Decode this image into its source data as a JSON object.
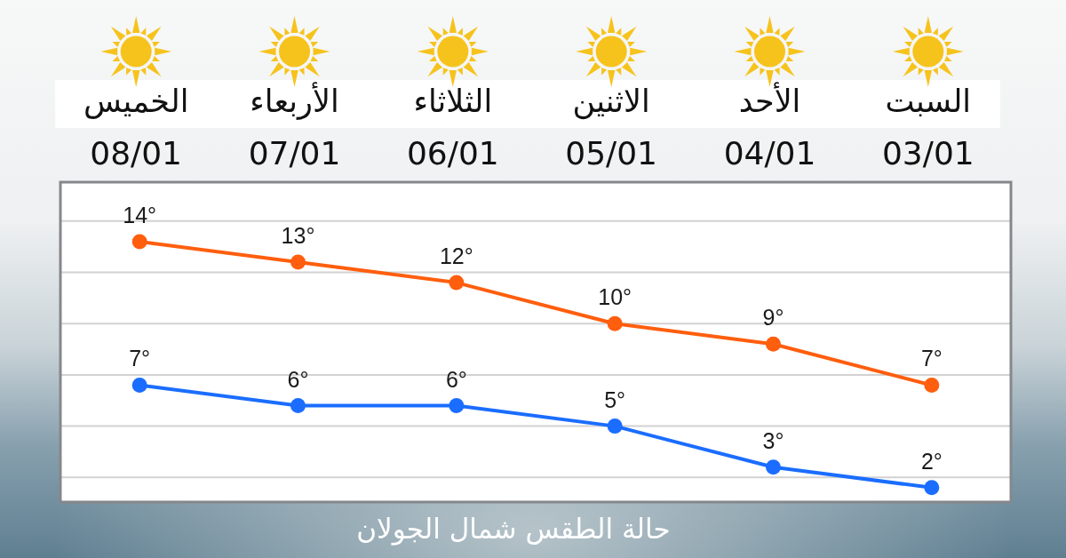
{
  "chart_data": {
    "type": "line",
    "title": "حالة الطقس شمال الجولان",
    "categories": [
      "الخميس\n08/01",
      "الأربعاء\n07/01",
      "الثلاثاء\n06/01",
      "الاثنين\n05/01",
      "الأحد\n04/01",
      "السبت\n03/01"
    ],
    "series": [
      {
        "color": "#ff5e0e",
        "values": [
          14,
          13,
          12,
          10,
          9,
          7
        ],
        "value_labels": [
          "14°",
          "13°",
          "12°",
          "10°",
          "9°",
          "7°"
        ]
      },
      {
        "color": "#1a6dff",
        "values": [
          7,
          6,
          6,
          5,
          3,
          2
        ],
        "value_labels": [
          "7°",
          "6°",
          "6°",
          "5°",
          "3°",
          "2°"
        ]
      }
    ],
    "ylim": [
      1.3,
      16.9
    ],
    "yticks": [
      {
        "value": 2.5,
        "label": null
      },
      {
        "value": 5,
        "label": null
      },
      {
        "value": 7.5,
        "label": null
      },
      {
        "value": 10,
        "label": null
      },
      {
        "value": 12.5,
        "label": null
      },
      {
        "value": 15,
        "label": null
      }
    ],
    "grid": "y",
    "tick_labels": "x",
    "marker": "circle",
    "line_style": "solid"
  }
}
